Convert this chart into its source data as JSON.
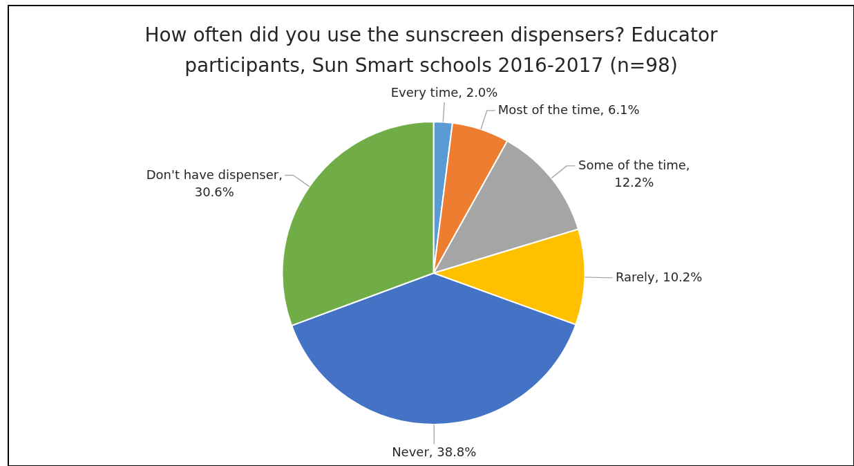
{
  "chart_data": {
    "type": "pie",
    "title": "How often did you use the sunscreen dispensers? Educator participants, Sun Smart schools 2016-2017 (n=98)",
    "categories": [
      "Every time",
      "Most of the time",
      "Some of the time",
      "Rarely",
      "Never",
      "Don't have dispenser"
    ],
    "values": [
      2.0,
      6.1,
      12.2,
      10.2,
      38.8,
      30.6
    ],
    "colors": [
      "#5b9bd5",
      "#ed7d31",
      "#a5a5a5",
      "#ffc000",
      "#4472c4",
      "#70ad47"
    ],
    "value_labels": [
      ", 2.0%",
      ", 6.1%",
      ", 12.2%",
      ", 10.2%",
      ", 38.8%",
      ", 30.6%"
    ]
  }
}
